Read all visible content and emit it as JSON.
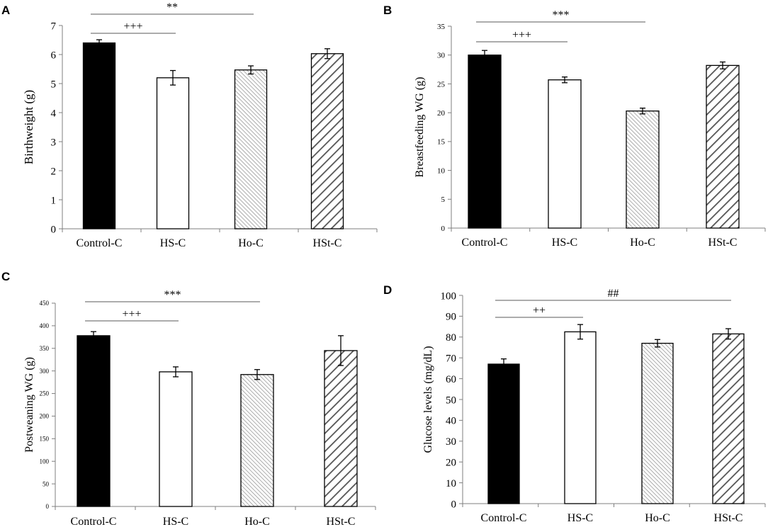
{
  "chart_data": [
    {
      "panel": "A",
      "type": "bar",
      "categories": [
        "Control-C",
        "HS-C",
        "Ho-C",
        "HSt-C"
      ],
      "values": [
        6.4,
        5.2,
        5.47,
        6.03
      ],
      "errors": [
        0.11,
        0.25,
        0.14,
        0.17
      ],
      "ylabel": "Birthweight (g)",
      "xlabel": "",
      "ylim": [
        0,
        7
      ],
      "yticks": [
        0,
        1,
        2,
        3,
        4,
        5,
        6,
        7
      ],
      "significance": [
        {
          "label": "**",
          "from": "Control-C",
          "to": "Ho-C"
        },
        {
          "label": "+++",
          "from": "Control-C",
          "to": "HS-C"
        }
      ]
    },
    {
      "panel": "B",
      "type": "bar",
      "categories": [
        "Control-C",
        "HS-C",
        "Ho-C",
        "HSt-C"
      ],
      "values": [
        30,
        25.7,
        20.3,
        28.2
      ],
      "errors": [
        0.8,
        0.5,
        0.5,
        0.6
      ],
      "ylabel": "Breastfeeding WG (g)",
      "xlabel": "",
      "ylim": [
        0,
        35
      ],
      "yticks": [
        0,
        5,
        10,
        15,
        20,
        25,
        30,
        35
      ],
      "significance": [
        {
          "label": "***",
          "from": "Control-C",
          "to": "Ho-C"
        },
        {
          "label": "+++",
          "from": "Control-C",
          "to": "HS-C"
        }
      ]
    },
    {
      "panel": "C",
      "type": "bar",
      "categories": [
        "Control-C",
        "HS-C",
        "Ho-C",
        "HSt-C"
      ],
      "values": [
        378,
        298,
        292,
        345
      ],
      "errors": [
        9,
        11,
        11,
        33
      ],
      "ylabel": "Postweaning WG (g)",
      "xlabel": "",
      "ylim": [
        0,
        450
      ],
      "yticks": [
        0,
        50,
        100,
        150,
        200,
        250,
        300,
        350,
        400,
        450
      ],
      "significance": [
        {
          "label": "***",
          "from": "Control-C",
          "to": "Ho-C"
        },
        {
          "label": "+++",
          "from": "Control-C",
          "to": "HS-C"
        }
      ]
    },
    {
      "panel": "D",
      "type": "bar",
      "categories": [
        "Control-C",
        "HS-C",
        "Ho-C",
        "HSt-C"
      ],
      "values": [
        67,
        82.5,
        77,
        81.5
      ],
      "errors": [
        2.5,
        3.5,
        1.8,
        2.5
      ],
      "ylabel": "Glucose levels (mg/dL)",
      "xlabel": "",
      "ylim": [
        0,
        100
      ],
      "yticks": [
        0,
        10,
        20,
        30,
        40,
        50,
        60,
        70,
        80,
        90,
        100
      ],
      "significance": [
        {
          "label": "##",
          "from": "Control-C",
          "to": "HSt-C"
        },
        {
          "label": "++",
          "from": "Control-C",
          "to": "HS-C"
        }
      ]
    }
  ],
  "bar_fills": [
    "solid-black",
    "white",
    "fine-diagonal-hatch",
    "bold-diagonal-hatch"
  ],
  "colors": {
    "ink": "#000000",
    "background": "#ffffff",
    "axis": "#7f7f7f",
    "sigline": "#595959"
  }
}
